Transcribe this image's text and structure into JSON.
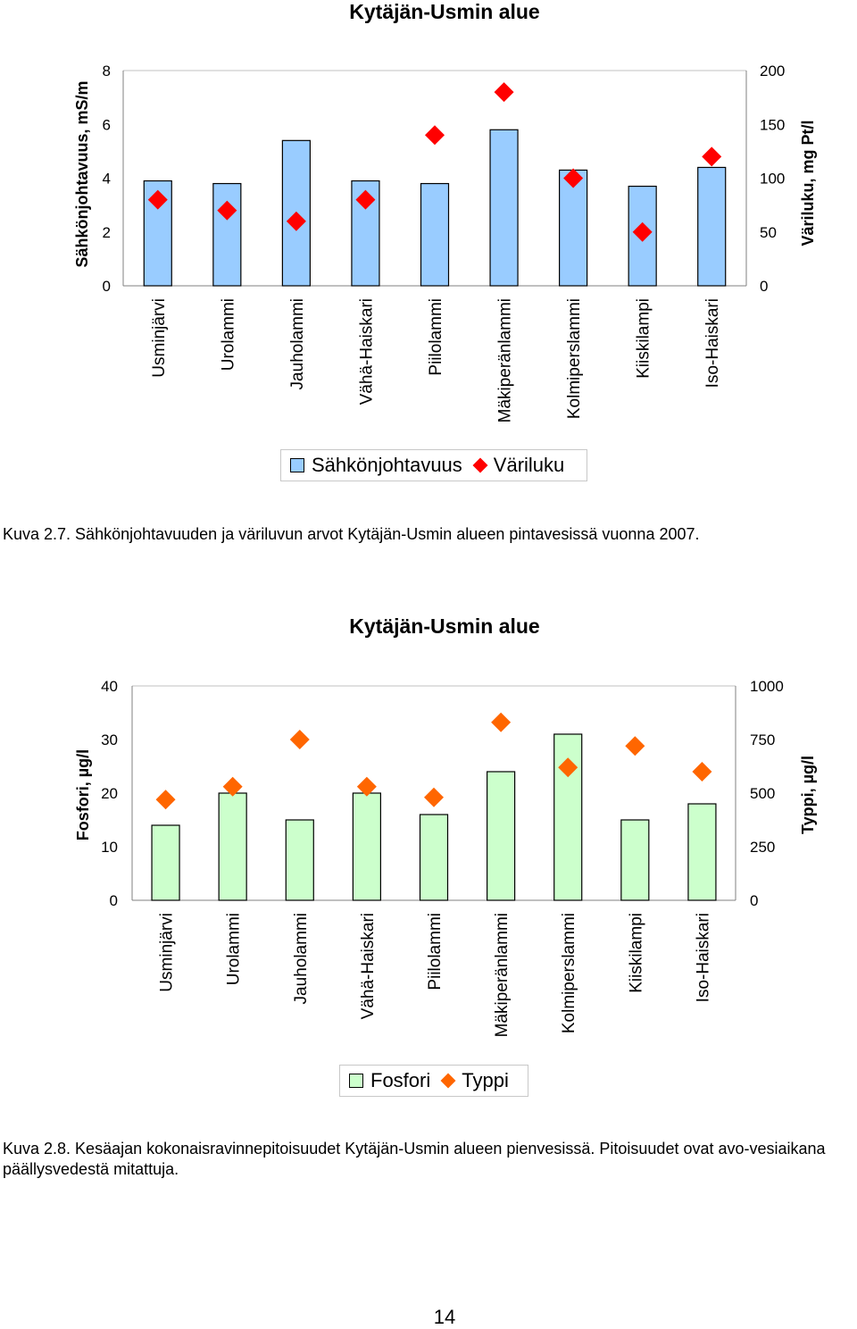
{
  "charts": [
    {
      "title": "Kytäjän-Usmin alue",
      "caption": "Kuva 2.7. Sähkönjohtavuuden ja väriluvun arvot Kytäjän-Usmin alueen pintavesissä vuonna 2007.",
      "legend": [
        "Sähkönjohtavuus",
        "Väriluku"
      ]
    },
    {
      "title": "Kytäjän-Usmin  alue",
      "caption": "Kuva 2.8. Kesäajan kokonaisravinnepitoisuudet Kytäjän-Usmin alueen pienvesissä. Pitoisuudet ovat avo-vesiaikana päällysvedestä mitattuja.",
      "legend": [
        "Fosfori",
        "Typpi"
      ]
    }
  ],
  "page_number": "14",
  "colors": {
    "bar1": "#99ccff",
    "bar2": "#ccffcc",
    "marker1": "#ff0000",
    "marker2": "#ff6600",
    "axis": "#808080",
    "grid": "#c0c0c0"
  },
  "chart_data": [
    {
      "type": "bar",
      "title": "Kytäjän-Usmin alue",
      "categories": [
        "Usminjärvi",
        "Urolammi",
        "Jauholammi",
        "Vähä-Haiskari",
        "Piilolammi",
        "Mäkiperänlammi",
        "Kolmiperslammi",
        "Kiiskilampi",
        "Iso-Haiskari"
      ],
      "ylabel": "Sähkönjohtavuus, mS/m",
      "y2label": "Väriluku, mg Pt/l",
      "ylim": [
        0,
        8
      ],
      "y2lim": [
        0,
        200
      ],
      "yticks": [
        0,
        2,
        4,
        6,
        8
      ],
      "y2ticks": [
        0,
        50,
        100,
        150,
        200
      ],
      "legend_position": "bottom",
      "series": [
        {
          "name": "Sähkönjohtavuus",
          "type": "bar",
          "axis": "left",
          "values": [
            3.9,
            3.8,
            5.4,
            3.9,
            3.8,
            5.8,
            4.3,
            3.7,
            4.4
          ]
        },
        {
          "name": "Väriluku",
          "type": "marker",
          "axis": "right",
          "values": [
            80,
            70,
            60,
            80,
            140,
            180,
            100,
            50,
            120
          ]
        }
      ]
    },
    {
      "type": "bar",
      "title": "Kytäjän-Usmin  alue",
      "categories": [
        "Usminjärvi",
        "Urolammi",
        "Jauholammi",
        "Vähä-Haiskari",
        "Piilolammi",
        "Mäkiperänlammi",
        "Kolmiperslammi",
        "Kiiskilampi",
        "Iso-Haiskari"
      ],
      "ylabel": "Fosfori, µg/l",
      "y2label": "Typpi, µg/l",
      "ylim": [
        0,
        40
      ],
      "y2lim": [
        0,
        1000
      ],
      "yticks": [
        0,
        10,
        20,
        30,
        40
      ],
      "y2ticks": [
        0,
        250,
        500,
        750,
        1000
      ],
      "legend_position": "bottom",
      "series": [
        {
          "name": "Fosfori",
          "type": "bar",
          "axis": "left",
          "values": [
            14,
            20,
            15,
            20,
            16,
            24,
            31,
            15,
            18
          ]
        },
        {
          "name": "Typpi",
          "type": "marker",
          "axis": "right",
          "values": [
            470,
            530,
            750,
            530,
            480,
            830,
            620,
            720,
            600
          ]
        }
      ]
    }
  ]
}
